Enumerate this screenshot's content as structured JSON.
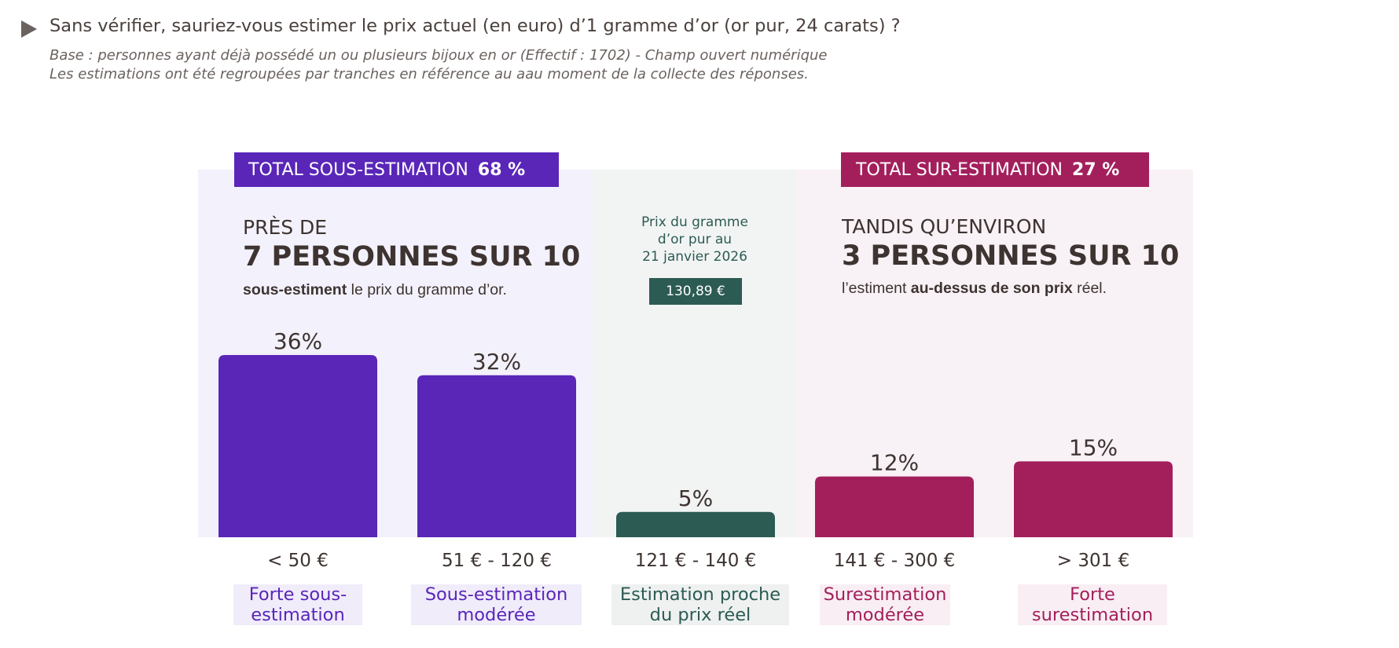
{
  "question": "Sans vérifier, sauriez-vous estimer le prix actuel (en euro) d’1 gramme d’or (or pur, 24 carats) ?",
  "base_line1": "Base : personnes ayant déjà possédé un ou plusieurs bijoux en or (Effectif : 1702) - Champ ouvert numérique",
  "base_line2": "Les estimations ont été regroupées par tranches en référence au aau moment de la collecte des réponses.",
  "under": {
    "total_label": "TOTAL SOUS-ESTIMATION",
    "total_value": "68 %",
    "line_small": "PRÈS DE",
    "line_big": "7 PERSONNES SUR 10",
    "desc_bold": "sous-estiment",
    "desc_rest": " le prix du gramme d’or."
  },
  "over": {
    "total_label": "TOTAL SUR-ESTIMATION",
    "total_value": "27 %",
    "line_small": "TANDIS QU’ENVIRON",
    "line_big": "3 PERSONNES SUR 10",
    "desc_pre": "l’estiment ",
    "desc_bold": "au-dessus de son prix",
    "desc_post": " réel."
  },
  "reference": {
    "label_line1": "Prix du gramme",
    "label_line2": "d’or pur au",
    "label_line3": "21 janvier 2026",
    "value": "130,89 €"
  },
  "colors": {
    "under": "#5926b8",
    "exact": "#2c5b54",
    "over": "#a31f5c"
  },
  "chart_data": {
    "type": "bar",
    "categories": [
      "< 50 €",
      "51 € - 120 €",
      "121 € - 140 €",
      "141 € - 300 €",
      "> 301 €"
    ],
    "category_names": [
      [
        "Forte sous-",
        "estimation"
      ],
      [
        "Sous-estimation",
        "modérée"
      ],
      [
        "Estimation proche",
        "du prix réel"
      ],
      [
        "Surestimation",
        "modérée"
      ],
      [
        "Forte",
        "surestimation"
      ]
    ],
    "values": [
      36,
      32,
      5,
      12,
      15
    ],
    "value_labels": [
      "36%",
      "32%",
      "5%",
      "12%",
      "15%"
    ],
    "groups": [
      "under",
      "under",
      "exact",
      "over",
      "over"
    ],
    "ylim": [
      0,
      36
    ],
    "grid": false
  }
}
